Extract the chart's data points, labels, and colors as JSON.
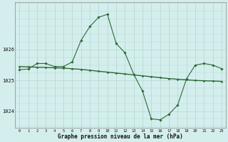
{
  "background_color": "#d4eeee",
  "grid_color": "#b0d8cc",
  "line1_color": "#2d6a35",
  "line2_color": "#2d6a35",
  "hours": [
    0,
    1,
    2,
    3,
    4,
    5,
    6,
    7,
    8,
    9,
    10,
    11,
    12,
    13,
    14,
    15,
    16,
    17,
    18,
    19,
    20,
    21,
    22,
    23
  ],
  "line1": [
    1025.35,
    1025.37,
    1025.55,
    1025.55,
    1025.45,
    1025.45,
    1025.6,
    1026.3,
    1026.75,
    1027.05,
    1027.15,
    1026.2,
    1025.9,
    1025.2,
    1024.65,
    1023.75,
    1023.72,
    1023.9,
    1024.2,
    1025.05,
    1025.5,
    1025.55,
    1025.5,
    1025.38
  ],
  "line2": [
    1025.45,
    1025.44,
    1025.43,
    1025.42,
    1025.41,
    1025.4,
    1025.38,
    1025.36,
    1025.33,
    1025.3,
    1025.27,
    1025.24,
    1025.21,
    1025.18,
    1025.15,
    1025.12,
    1025.09,
    1025.06,
    1025.04,
    1025.02,
    1025.0,
    1024.99,
    1024.98,
    1024.97
  ],
  "ylim": [
    1023.45,
    1027.55
  ],
  "ytick_positions": [
    1024,
    1025,
    1026
  ],
  "ytick_labels": [
    "1024",
    "1025",
    "1026"
  ],
  "xlabel": "Graphe pression niveau de la mer (hPa)",
  "figsize": [
    3.2,
    2.0
  ],
  "dpi": 100
}
